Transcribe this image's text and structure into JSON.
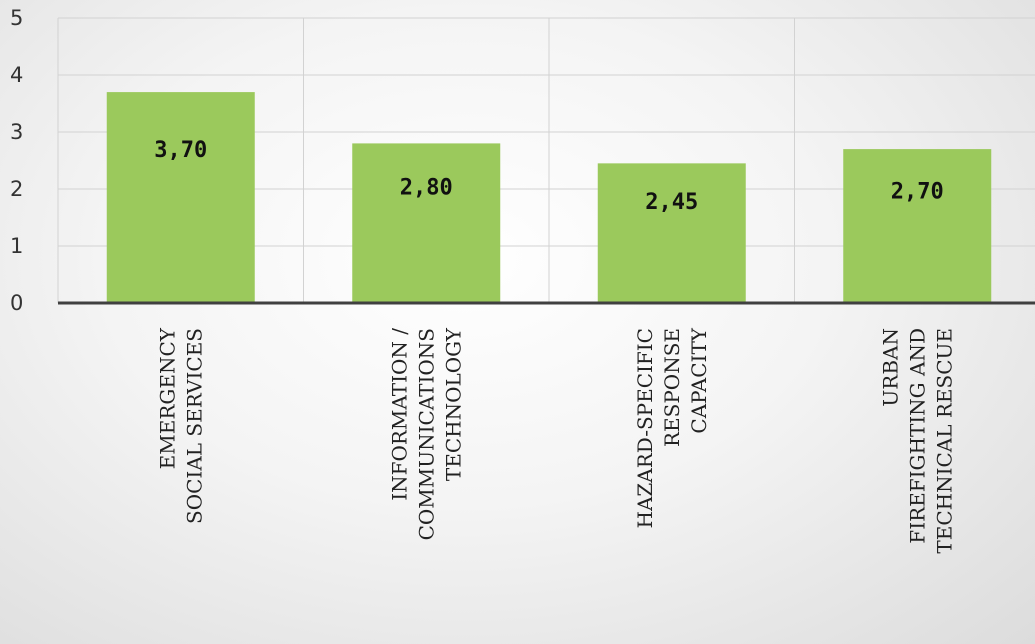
{
  "chart_data": {
    "type": "bar",
    "title": "",
    "xlabel": "",
    "ylabel": "",
    "ylim": [
      0,
      5
    ],
    "yticks": [
      0,
      1,
      2,
      3,
      4,
      5
    ],
    "grid": true,
    "legend": "none",
    "bar_color": "#9bc95c",
    "categories": [
      [
        "EMERGENCY",
        "SOCIAL SERVICES"
      ],
      [
        "INFORMATION /",
        "COMMUNICATIONS",
        "TECHNOLOGY"
      ],
      [
        "HAZARD-SPECIFIC",
        "RESPONSE",
        "CAPACITY"
      ],
      [
        "URBAN",
        "FIREFIGHTING AND",
        "TECHNICAL RESCUE"
      ]
    ],
    "values": [
      3.7,
      2.8,
      2.45,
      2.7
    ],
    "value_labels": [
      "3,70",
      "2,80",
      "2,45",
      "2,70"
    ]
  }
}
